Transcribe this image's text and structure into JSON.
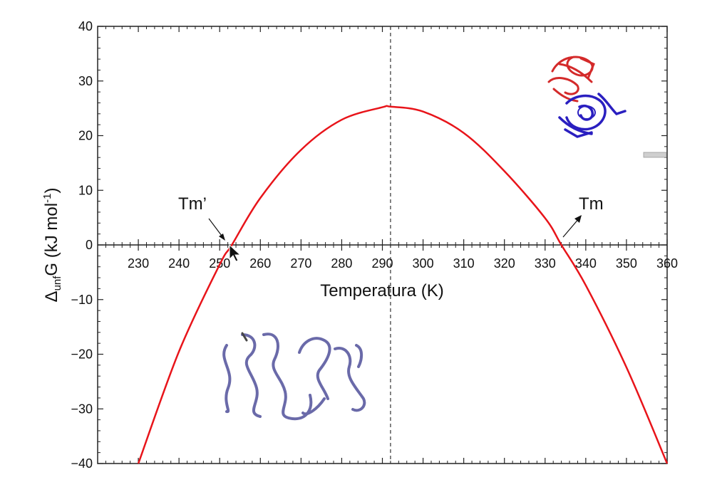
{
  "chart_data": {
    "type": "line",
    "title": "",
    "xlabel": "Temperatura (K)",
    "ylabel": {
      "prefix": "Δ",
      "sub": "unf",
      "mid": "G (kJ mol",
      "sup": "-1",
      "suffix": ")"
    },
    "xlim": [
      220,
      360
    ],
    "ylim": [
      -40,
      40
    ],
    "x_ticks": [
      230,
      240,
      250,
      260,
      270,
      280,
      290,
      300,
      310,
      320,
      330,
      340,
      350,
      360
    ],
    "y_ticks": [
      {
        "value": 40,
        "label": "40"
      },
      {
        "value": 30,
        "label": "30"
      },
      {
        "value": 20,
        "label": "20"
      },
      {
        "value": 10,
        "label": "10"
      },
      {
        "value": 0,
        "label": "0"
      },
      {
        "value": -10,
        "label": "−10"
      },
      {
        "value": -20,
        "label": "−20"
      },
      {
        "value": -30,
        "label": "−30"
      },
      {
        "value": -40,
        "label": "−40"
      }
    ],
    "series": [
      {
        "color": "#e8141a",
        "x": [
          230,
          240,
          250,
          253,
          260,
          270,
          280,
          290,
          292,
          300,
          310,
          320,
          330,
          334,
          340,
          350,
          360
        ],
        "y": [
          -40,
          -19.5,
          -3.6,
          0,
          8.6,
          17.4,
          22.9,
          25.2,
          25.3,
          24.4,
          20.5,
          13.5,
          4.9,
          0,
          -7.4,
          -22.4,
          -40
        ]
      }
    ],
    "reference_lines": [
      {
        "axis": "x",
        "value": 292,
        "style": "dashed"
      },
      {
        "axis": "y",
        "value": 0,
        "style": "solid"
      }
    ],
    "annotations": [
      {
        "text": "Tm’",
        "x": 253,
        "y": 0
      },
      {
        "text": "Tm",
        "x": 334,
        "y": 0
      }
    ],
    "grid": false,
    "colors": {
      "curve": "#e8141a",
      "folded_top": "#d42a2a",
      "folded_bottom": "#2a1fc0",
      "unfolded": "#5a5aa0"
    }
  }
}
